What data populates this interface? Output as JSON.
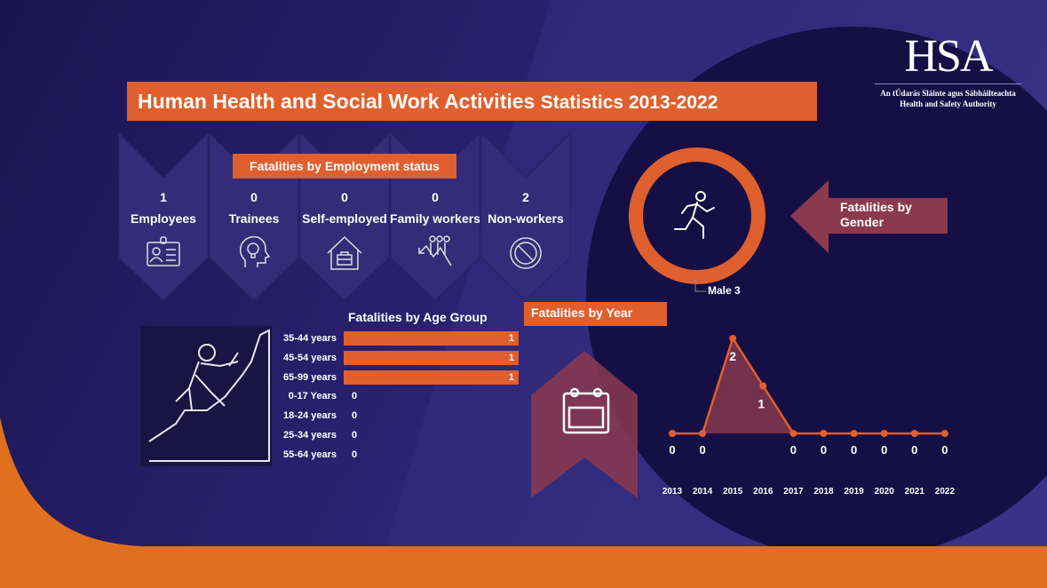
{
  "title": {
    "main": "Human Health and Social Work Activities",
    "suffix": "Statistics 2013-2022"
  },
  "logo": {
    "name": "HSA",
    "irish": "An tÚdarás Sláinte agus Sábháilteachta",
    "english": "Health and Safety Authority"
  },
  "employment": {
    "title": "Fatalities by Employment status",
    "items": [
      {
        "value": "1",
        "label": "Employees",
        "icon": "id-badge-icon"
      },
      {
        "value": "0",
        "label": "Trainees",
        "icon": "head-lightbulb-icon"
      },
      {
        "value": "0",
        "label": "Self-employed",
        "icon": "house-briefcase-icon"
      },
      {
        "value": "0",
        "label": "Family workers",
        "icon": "people-arrow-icon"
      },
      {
        "value": "2",
        "label": "Non-workers",
        "icon": "prohibited-icon"
      }
    ]
  },
  "gender": {
    "title": "Fatalities by Gender",
    "label": "Male 3",
    "icon": "runner-icon"
  },
  "colors": {
    "accent": "#e05f2e",
    "arrow": "#8b3a4e",
    "bg": "#1d1650"
  },
  "chart_data": [
    {
      "type": "bar",
      "title": "Fatalities by Age Group",
      "orientation": "horizontal",
      "categories": [
        "35-44 years",
        "45-54 years",
        "65-99 years",
        "0-17 Years",
        "18-24 years",
        "25-34 years",
        "55-64 years"
      ],
      "values": [
        1,
        1,
        1,
        0,
        0,
        0,
        0
      ]
    },
    {
      "type": "line",
      "title": "Fatalities by Year",
      "x": [
        "2013",
        "2014",
        "2015",
        "2016",
        "2017",
        "2018",
        "2019",
        "2020",
        "2021",
        "2022"
      ],
      "values": [
        0,
        0,
        2,
        1,
        0,
        0,
        0,
        0,
        0,
        0
      ],
      "ylim": [
        0,
        2
      ]
    }
  ]
}
